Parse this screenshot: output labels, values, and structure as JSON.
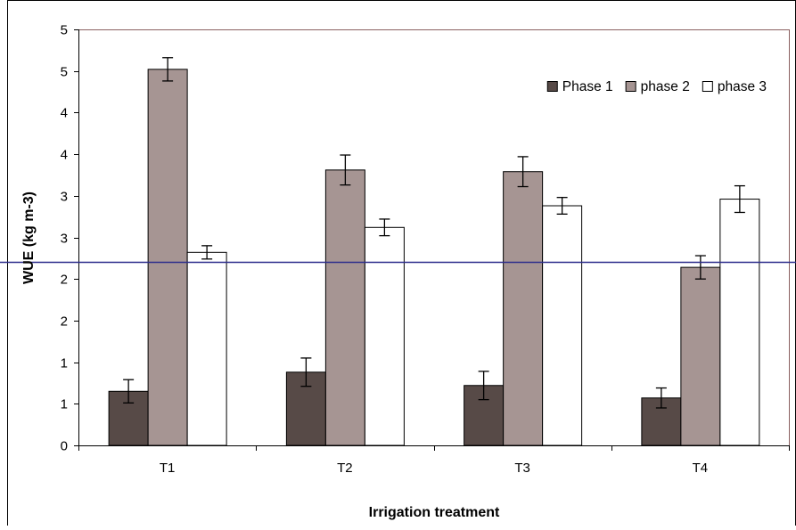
{
  "chart_data": {
    "type": "bar",
    "title": "",
    "xlabel": "Irrigation treatment",
    "ylabel": "WUE (kg m-3)",
    "categories": [
      "T1",
      "T2",
      "T3",
      "T4"
    ],
    "y_tick_labels": [
      "0",
      "1",
      "1",
      "2",
      "2",
      "3",
      "3",
      "4",
      "4",
      "5",
      "5"
    ],
    "ylim": [
      0,
      5
    ],
    "grid": false,
    "legend_position": "top-right",
    "reference_line": 2.2,
    "series": [
      {
        "name": "Phase 1",
        "color": "#574a47",
        "values": [
          0.65,
          0.88,
          0.72,
          0.57
        ],
        "errors": [
          0.14,
          0.17,
          0.17,
          0.12
        ]
      },
      {
        "name": "phase 2",
        "color": "#a69593",
        "values": [
          4.52,
          3.31,
          3.29,
          2.14
        ],
        "errors": [
          0.14,
          0.18,
          0.18,
          0.14
        ]
      },
      {
        "name": "phase 3",
        "color": "#ffffff",
        "values": [
          2.32,
          2.62,
          2.88,
          2.96
        ],
        "errors": [
          0.08,
          0.1,
          0.1,
          0.16
        ]
      }
    ],
    "colors": {
      "plot_border": "#8a6060",
      "reference_line": "#2e2e8c",
      "axis": "#000000"
    }
  }
}
